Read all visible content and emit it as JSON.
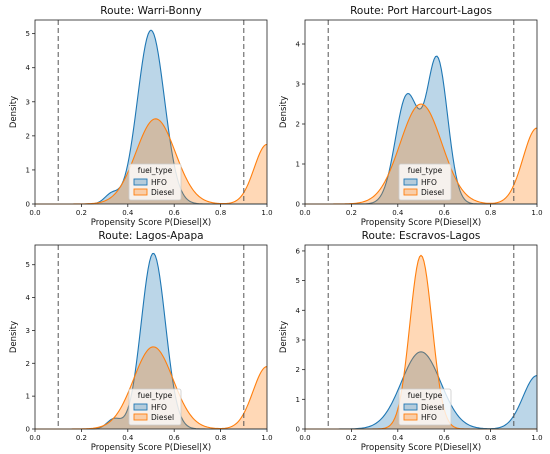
{
  "colors": {
    "blue": "#1f77b4",
    "orange": "#ff7f0e",
    "vline": "#555555"
  },
  "chart_data": [
    {
      "type": "area",
      "title": "Route: Warri-Bonny",
      "xlabel": "Propensity Score P(Diesel|X)",
      "ylabel": "Density",
      "xlim": [
        0,
        1
      ],
      "ylim": [
        0,
        5.4
      ],
      "yticks": [
        0,
        1,
        2,
        3,
        4,
        5
      ],
      "xticks": [
        0.0,
        0.2,
        0.4,
        0.6,
        0.8,
        1.0
      ],
      "vlines": [
        0.1,
        0.9
      ],
      "legend": {
        "title": "fuel_type",
        "entries": [
          "HFO",
          "Diesel"
        ],
        "position": "lower-center"
      },
      "series": [
        {
          "name": "HFO",
          "color": "#1f77b4",
          "components": [
            [
              0.5,
              0.058,
              5.1
            ],
            [
              0.33,
              0.03,
              0.28
            ]
          ]
        },
        {
          "name": "Diesel",
          "color": "#ff7f0e",
          "components": [
            [
              0.52,
              0.085,
              2.5
            ],
            [
              1.0,
              0.055,
              1.75
            ]
          ]
        }
      ]
    },
    {
      "type": "area",
      "title": "Route: Port Harcourt-Lagos",
      "xlabel": "Propensity Score P(Diesel|X)",
      "ylabel": "Density",
      "xlim": [
        0,
        1
      ],
      "ylim": [
        0,
        4.6
      ],
      "yticks": [
        0,
        1,
        2,
        3,
        4
      ],
      "xticks": [
        0.0,
        0.2,
        0.4,
        0.6,
        0.8,
        1.0
      ],
      "vlines": [
        0.1,
        0.9
      ],
      "legend": {
        "title": "fuel_type",
        "entries": [
          "HFO",
          "Diesel"
        ],
        "position": "lower-center"
      },
      "series": [
        {
          "name": "HFO",
          "color": "#1f77b4",
          "components": [
            [
              0.44,
              0.05,
              2.7
            ],
            [
              0.57,
              0.045,
              3.6
            ]
          ]
        },
        {
          "name": "Diesel",
          "color": "#ff7f0e",
          "components": [
            [
              0.5,
              0.09,
              2.5
            ],
            [
              1.0,
              0.06,
              1.9
            ]
          ]
        }
      ]
    },
    {
      "type": "area",
      "title": "Route: Lagos-Apapa",
      "xlabel": "Propensity Score P(Diesel|X)",
      "ylabel": "Density",
      "xlim": [
        0,
        1
      ],
      "ylim": [
        0,
        5.6
      ],
      "yticks": [
        0,
        1,
        2,
        3,
        4,
        5
      ],
      "xticks": [
        0.0,
        0.2,
        0.4,
        0.6,
        0.8,
        1.0
      ],
      "vlines": [
        0.1,
        0.9
      ],
      "legend": {
        "title": "fuel_type",
        "entries": [
          "HFO",
          "Diesel"
        ],
        "position": "lower-center"
      },
      "series": [
        {
          "name": "HFO",
          "color": "#1f77b4",
          "components": [
            [
              0.51,
              0.052,
              5.35
            ],
            [
              0.34,
              0.03,
              0.3
            ]
          ]
        },
        {
          "name": "Diesel",
          "color": "#ff7f0e",
          "components": [
            [
              0.51,
              0.085,
              2.5
            ],
            [
              1.0,
              0.06,
              1.9
            ]
          ]
        }
      ]
    },
    {
      "type": "area",
      "title": "Route: Escravos-Lagos",
      "xlabel": "Propensity Score P(Diesel|X)",
      "ylabel": "Density",
      "xlim": [
        0,
        1
      ],
      "ylim": [
        0,
        6.2
      ],
      "yticks": [
        0,
        1,
        2,
        3,
        4,
        5,
        6
      ],
      "xticks": [
        0.0,
        0.2,
        0.4,
        0.6,
        0.8,
        1.0
      ],
      "vlines": [
        0.1,
        0.9
      ],
      "legend": {
        "title": "fuel_type",
        "entries": [
          "Diesel",
          "HFO"
        ],
        "position": "lower-center"
      },
      "series": [
        {
          "name": "Diesel",
          "color": "#1f77b4",
          "components": [
            [
              0.5,
              0.085,
              2.6
            ],
            [
              1.0,
              0.06,
              1.8
            ]
          ]
        },
        {
          "name": "HFO",
          "color": "#ff7f0e",
          "components": [
            [
              0.5,
              0.048,
              5.85
            ]
          ]
        }
      ]
    }
  ]
}
